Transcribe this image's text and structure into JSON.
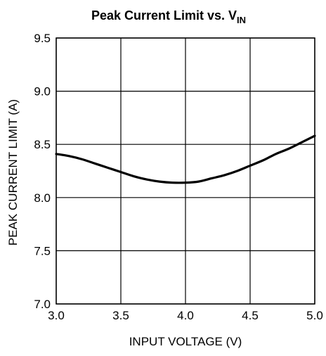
{
  "chart_data": {
    "type": "line",
    "title": "Peak Current Limit vs. V",
    "title_subscript": "IN",
    "xlabel": "INPUT VOLTAGE (V)",
    "ylabel": "PEAK CURRENT LIMIT (A)",
    "xlim": [
      3.0,
      5.0
    ],
    "ylim": [
      7.0,
      9.5
    ],
    "x_ticks": [
      "3.0",
      "3.5",
      "4.0",
      "4.5",
      "5.0"
    ],
    "y_ticks": [
      "7.0",
      "7.5",
      "8.0",
      "8.5",
      "9.0",
      "9.5"
    ],
    "grid": true,
    "series": [
      {
        "x": [
          3.0,
          3.1,
          3.2,
          3.3,
          3.4,
          3.5,
          3.6,
          3.7,
          3.8,
          3.9,
          4.0,
          4.1,
          4.2,
          4.3,
          4.4,
          4.5,
          4.6,
          4.7,
          4.8,
          4.9,
          5.0
        ],
        "y": [
          8.41,
          8.39,
          8.36,
          8.32,
          8.28,
          8.24,
          8.2,
          8.17,
          8.15,
          8.14,
          8.14,
          8.15,
          8.18,
          8.21,
          8.25,
          8.3,
          8.35,
          8.41,
          8.46,
          8.52,
          8.58
        ]
      }
    ],
    "colors": {
      "line": "#000000",
      "grid": "#000000",
      "background": "#ffffff"
    }
  }
}
